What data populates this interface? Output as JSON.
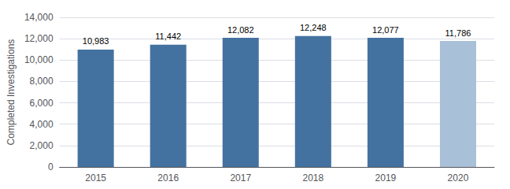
{
  "chart_data": {
    "type": "bar",
    "categories": [
      "2015",
      "2016",
      "2017",
      "2018",
      "2019",
      "2020"
    ],
    "values": [
      10983,
      11442,
      12082,
      12248,
      12077,
      11786
    ],
    "value_labels": [
      "10,983",
      "11,442",
      "12,082",
      "12,248",
      "12,077",
      "11,786"
    ],
    "data_labels": true,
    "colors": [
      "#4472a0",
      "#4472a0",
      "#4472a0",
      "#4472a0",
      "#4472a0",
      "#a8c0d8"
    ],
    "ylabel": "Completed Investigations",
    "ylim": [
      0,
      14000
    ],
    "yticks": [
      0,
      {
        "value": 2000,
        "label": "2,000"
      },
      {
        "value": 4000,
        "label": "4,000"
      },
      {
        "value": 6000,
        "label": "6,000"
      },
      {
        "value": 8000,
        "label": "8,000"
      },
      {
        "value": 10000,
        "label": "10,000"
      },
      {
        "value": 12000,
        "label": "12,000"
      },
      {
        "value": 14000,
        "label": "14,000"
      }
    ],
    "grid": true
  }
}
